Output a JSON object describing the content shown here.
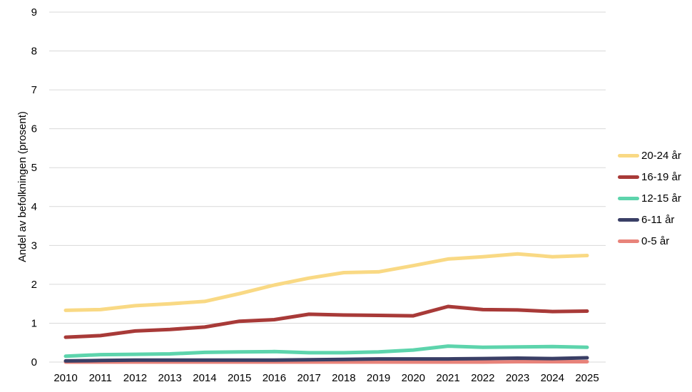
{
  "chart_data": {
    "type": "line",
    "title": "",
    "xlabel": "",
    "ylabel": "Andel av befolkningen (prosent)",
    "ylim": [
      0,
      9
    ],
    "yticks": [
      "0",
      "1",
      "2",
      "3",
      "4",
      "5",
      "6",
      "7",
      "8",
      "9"
    ],
    "x": [
      "2010",
      "2011",
      "2012",
      "2013",
      "2014",
      "2015",
      "2016",
      "2017",
      "2018",
      "2019",
      "2020",
      "2021",
      "2022",
      "2023",
      "2024",
      "2025"
    ],
    "grid": true,
    "legend_position": "right",
    "series": [
      {
        "name": "20-24 år",
        "color": "#f9d984",
        "values": [
          1.33,
          1.35,
          1.45,
          1.5,
          1.56,
          1.76,
          1.98,
          2.16,
          2.3,
          2.32,
          2.48,
          2.65,
          2.71,
          2.78,
          2.71,
          2.74
        ]
      },
      {
        "name": "16-19 år",
        "color": "#a83a38",
        "values": [
          0.64,
          0.68,
          0.8,
          0.84,
          0.9,
          1.05,
          1.09,
          1.23,
          1.21,
          1.2,
          1.19,
          1.43,
          1.35,
          1.34,
          1.3,
          1.31
        ]
      },
      {
        "name": "12-15 år",
        "color": "#5dd4ac",
        "values": [
          0.15,
          0.19,
          0.2,
          0.21,
          0.25,
          0.26,
          0.27,
          0.24,
          0.24,
          0.26,
          0.31,
          0.41,
          0.38,
          0.39,
          0.4,
          0.38
        ]
      },
      {
        "name": "6-11 år",
        "color": "#3a3f66",
        "values": [
          0.03,
          0.04,
          0.05,
          0.05,
          0.05,
          0.05,
          0.05,
          0.06,
          0.07,
          0.08,
          0.08,
          0.08,
          0.09,
          0.1,
          0.09,
          0.11
        ]
      },
      {
        "name": "0-5 år",
        "color": "#e8837a",
        "values": [
          0.0,
          0.0,
          0.0,
          0.0,
          0.0,
          0.0,
          0.0,
          0.0,
          0.0,
          0.0,
          0.0,
          0.0,
          0.0,
          0.01,
          0.01,
          0.01
        ]
      }
    ]
  }
}
